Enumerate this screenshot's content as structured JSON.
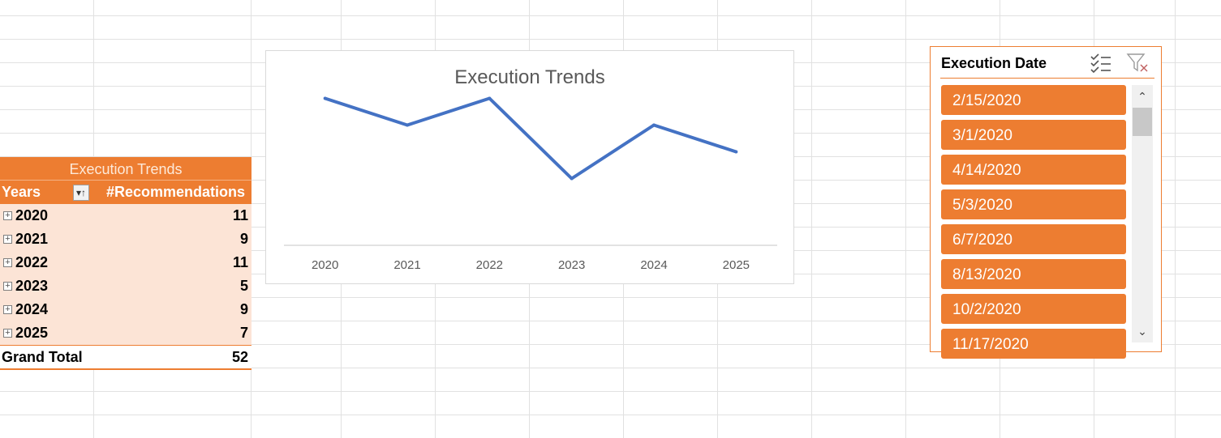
{
  "pivot": {
    "title": "Execution Trends",
    "col_years": "Years",
    "col_recommendations": "#Recommendations",
    "rows": [
      {
        "year": "2020",
        "count": "11"
      },
      {
        "year": "2021",
        "count": "9"
      },
      {
        "year": "2022",
        "count": "11"
      },
      {
        "year": "2023",
        "count": "5"
      },
      {
        "year": "2024",
        "count": "9"
      },
      {
        "year": "2025",
        "count": "7"
      }
    ],
    "total_label": "Grand Total",
    "total_value": "52",
    "expand_glyph": "+",
    "sort_glyph": "▾↑"
  },
  "chart_data": {
    "type": "line",
    "title": "Execution Trends",
    "categories": [
      "2020",
      "2021",
      "2022",
      "2023",
      "2024",
      "2025"
    ],
    "series": [
      {
        "values": [
          11,
          9,
          11,
          5,
          9,
          7
        ],
        "color": "#4472c4"
      }
    ],
    "ylim": [
      0,
      12
    ],
    "y_axis_shown": false,
    "grid": false,
    "legend": "none"
  },
  "slicer": {
    "title": "Execution Date",
    "items": [
      "2/15/2020",
      "3/1/2020",
      "4/14/2020",
      "5/3/2020",
      "6/7/2020",
      "8/13/2020",
      "10/2/2020",
      "11/17/2020"
    ],
    "accent": "#ed7d31",
    "multi_select_icon": "multi-select-icon",
    "clear_filter_icon": "clear-filter-icon"
  }
}
